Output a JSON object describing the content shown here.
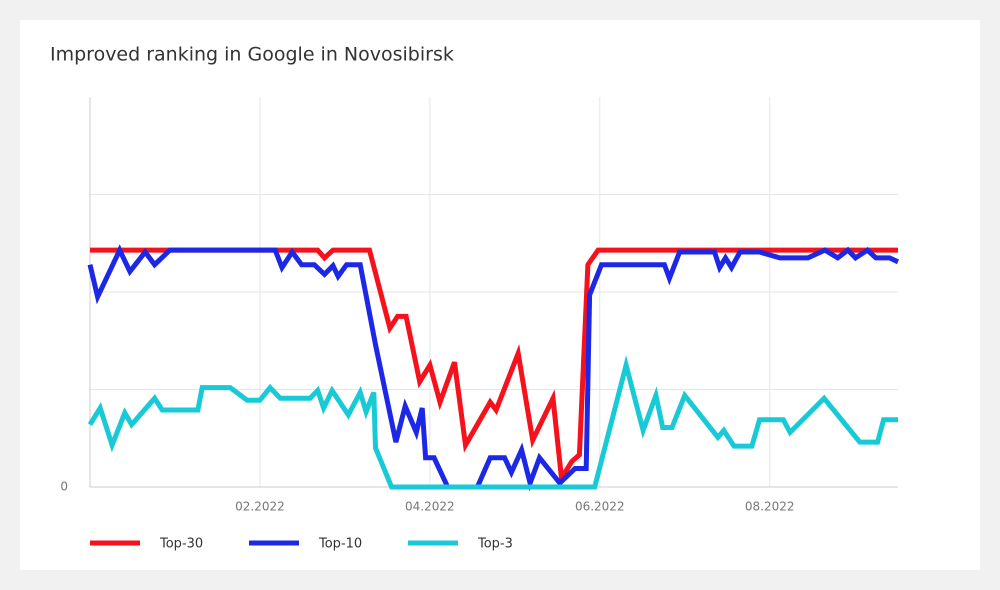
{
  "chart_data": {
    "type": "line",
    "title": "Improved ranking in Google in Novosibirsk",
    "xlim": [
      0,
      9.51
    ],
    "xticks": [
      {
        "value": 2,
        "label": "02.2022"
      },
      {
        "value": 4,
        "label": "04.2022"
      },
      {
        "value": 6,
        "label": "06.2022"
      },
      {
        "value": 8,
        "label": "08.2022"
      }
    ],
    "ylim": [
      0,
      40
    ],
    "yticks": [
      0
    ],
    "y_gridlines": [
      10,
      20,
      30
    ],
    "grid": true,
    "series": [
      {
        "name": "Top-30",
        "color": "#f5121c",
        "x": [
          0,
          2.68,
          2.76,
          2.86,
          3.29,
          3.53,
          3.62,
          3.72,
          3.88,
          4,
          4.12,
          4.29,
          4.42,
          4.71,
          4.78,
          5.04,
          5.21,
          5.45,
          5.55,
          5.67,
          5.76,
          5.86,
          5.98,
          9.51
        ],
        "values": [
          24.3,
          24.3,
          23.5,
          24.3,
          24.3,
          16.3,
          17.5,
          17.5,
          10.8,
          12.5,
          8.7,
          12.8,
          4.3,
          8.7,
          7.9,
          13.7,
          4.8,
          9.1,
          0.9,
          2.6,
          3.3,
          22.8,
          24.3,
          24.3
        ]
      },
      {
        "name": "Top-10",
        "color": "#1c28e6",
        "x": [
          0,
          0.09,
          0.35,
          0.47,
          0.65,
          0.76,
          0.94,
          2.18,
          2.26,
          2.38,
          2.49,
          2.64,
          2.76,
          2.86,
          2.92,
          3.02,
          3.18,
          3.36,
          3.6,
          3.71,
          3.84,
          3.91,
          3.95,
          4.05,
          4.21,
          4.56,
          4.71,
          4.88,
          4.96,
          5.08,
          5.18,
          5.29,
          5.53,
          5.71,
          5.84,
          5.88,
          6.02,
          6.76,
          6.82,
          6.94,
          7.35,
          7.41,
          7.48,
          7.55,
          7.65,
          7.88,
          8.12,
          8.45,
          8.65,
          8.8,
          8.92,
          9.01,
          9.15,
          9.25,
          9.41,
          9.51
        ],
        "values": [
          22.8,
          19.5,
          24.3,
          22.1,
          24.1,
          22.8,
          24.3,
          24.3,
          22.5,
          24.1,
          22.8,
          22.8,
          21.8,
          22.7,
          21.6,
          22.8,
          22.8,
          14.6,
          4.6,
          8.3,
          5.6,
          8.1,
          3.0,
          3.0,
          0,
          0,
          3.0,
          3.0,
          1.5,
          3.8,
          0.4,
          3.0,
          0.4,
          1.9,
          1.9,
          19.7,
          22.8,
          22.8,
          21.4,
          24.1,
          24.1,
          22.5,
          23.5,
          22.5,
          24.1,
          24.1,
          23.5,
          23.5,
          24.3,
          23.5,
          24.3,
          23.5,
          24.3,
          23.5,
          23.5,
          23.1
        ]
      },
      {
        "name": "Top-3",
        "color": "#17cad6",
        "x": [
          0,
          0.12,
          0.26,
          0.41,
          0.49,
          0.76,
          0.85,
          1.27,
          1.32,
          1.65,
          1.85,
          2,
          2.12,
          2.24,
          2.59,
          2.68,
          2.75,
          2.85,
          3.04,
          3.18,
          3.25,
          3.34,
          3.36,
          3.55,
          5.94,
          6.31,
          6.51,
          6.66,
          6.74,
          6.85,
          7,
          7.39,
          7.46,
          7.58,
          7.79,
          7.88,
          8.16,
          8.24,
          8.64,
          9.06,
          9.27,
          9.34,
          9.51
        ],
        "values": [
          6.4,
          8.1,
          4.3,
          7.6,
          6.4,
          9.1,
          7.9,
          7.9,
          10.2,
          10.2,
          8.9,
          8.9,
          10.2,
          9.1,
          9.1,
          9.9,
          8.1,
          9.9,
          7.4,
          9.7,
          7.7,
          9.7,
          4.0,
          0,
          0,
          12.5,
          5.8,
          9.4,
          6.1,
          6.1,
          9.4,
          5.1,
          5.8,
          4.2,
          4.2,
          6.9,
          6.9,
          5.6,
          9.1,
          4.6,
          4.6,
          6.9,
          6.9
        ]
      }
    ]
  }
}
